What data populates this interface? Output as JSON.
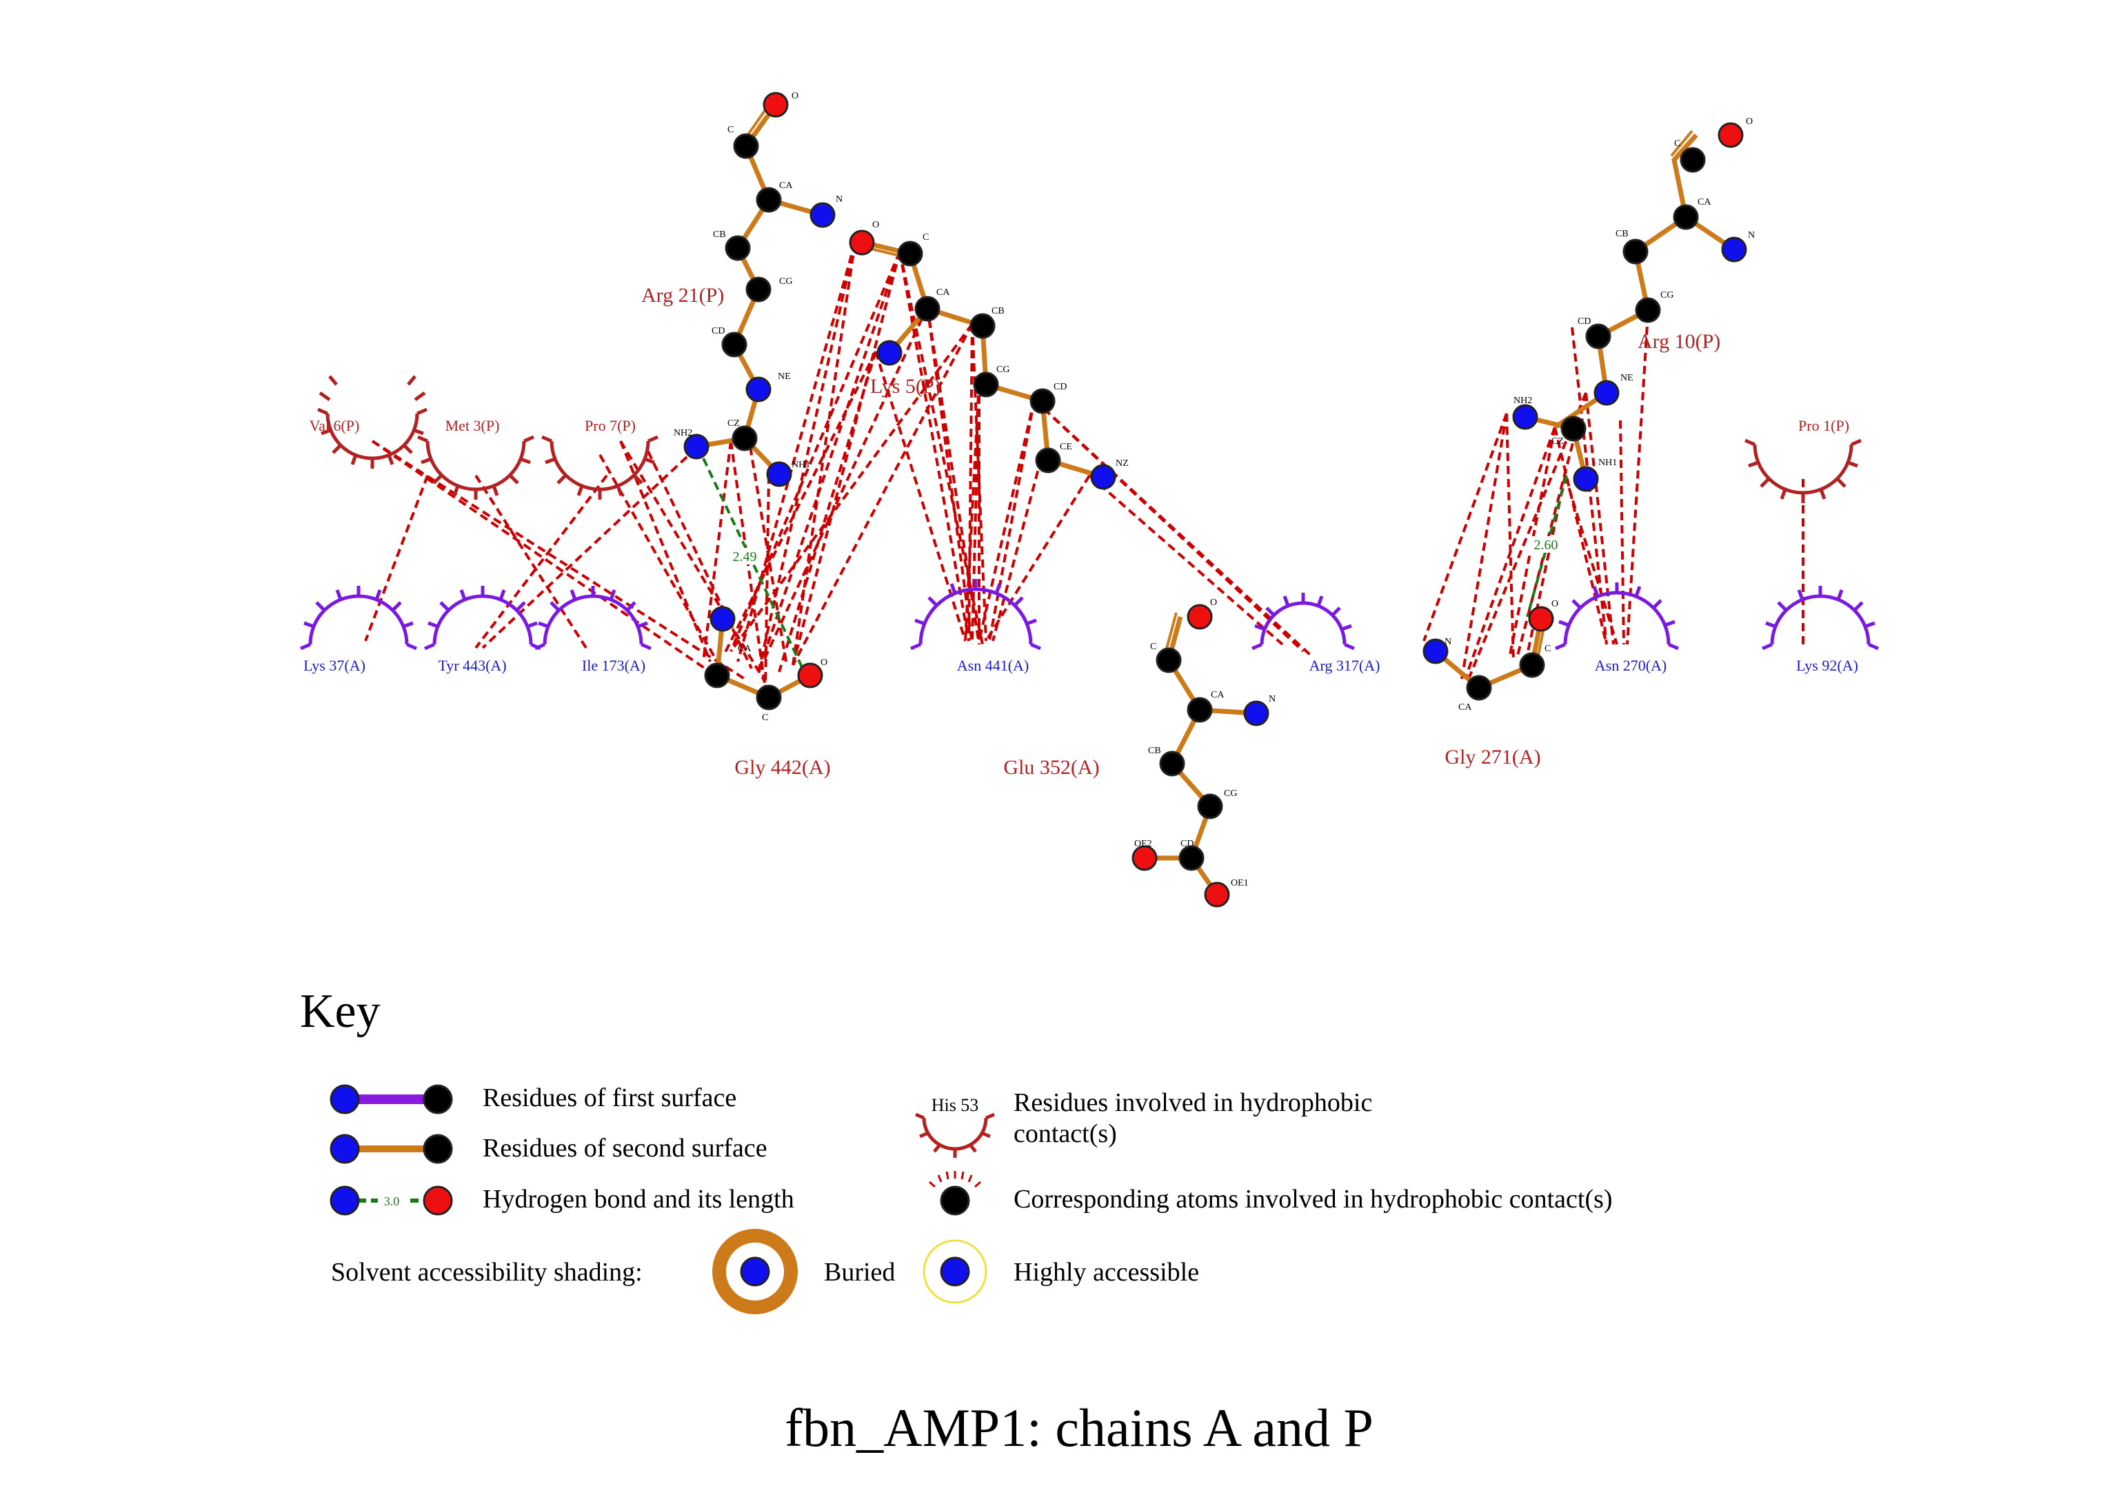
{
  "title": "fbn_AMP1: chains A and P",
  "key": {
    "heading": "Key",
    "first_surface": "Residues of first surface",
    "second_surface": "Residues of second surface",
    "hbond": "Hydrogen bond and its length",
    "hbond_sample_length": "3.0",
    "hydrophobic_sample": "His 53",
    "hydrophobic_line1": "Residues involved in hydrophobic",
    "hydrophobic_line2": "contact(s)",
    "hydrophobic_atoms": "Corresponding atoms involved in hydrophobic contact(s)",
    "shading_label": "Solvent accessibility shading:",
    "buried": "Buried",
    "accessible": "Highly accessible"
  },
  "colors": {
    "nitrogen": "#1010ee",
    "carbon": "#000000",
    "oxygen": "#ee1010",
    "first_surface_bond": "#8a1ae0",
    "second_surface_bond": "#cc7a1a",
    "hbond": "#1a7a1a",
    "hydrophobic": "#cc0000",
    "chain_p_label": "#b22222",
    "chain_a_label": "#1a1acc"
  },
  "residues_chain_p": {
    "arg21": "Arg 21(P)",
    "lys": "Lys 5(P)",
    "arg10": "Arg 10(P)",
    "val6": "Val 6(P)",
    "met3": "Met 3(P)",
    "pro7": "Pro 7(P)",
    "pro1": "Pro 1(P)"
  },
  "residues_chain_a": {
    "gly442": "Gly 442(A)",
    "glu352": "Glu 352(A)",
    "gly271": "Gly 271(A)",
    "lys37": "Lys 37(A)",
    "tyr443": "Tyr 443(A)",
    "ile173": "Ile 173(A)",
    "asn441": "Asn 441(A)",
    "arg317": "Arg 317(A)",
    "asn270": "Asn 270(A)",
    "lys92": "Lys 92(A)"
  },
  "hbond_lengths": {
    "left": "2.49",
    "right": "2.60"
  },
  "atom_labels": {
    "c": "C",
    "o": "O",
    "ca": "CA",
    "n": "N",
    "cb": "CB",
    "cg": "CG",
    "cd": "CD",
    "ne": "NE",
    "cz": "CZ",
    "nh1": "NH1",
    "nh2": "NH2",
    "ce": "CE",
    "nz": "NZ",
    "oe1": "OE1",
    "oe2": "OE2"
  }
}
